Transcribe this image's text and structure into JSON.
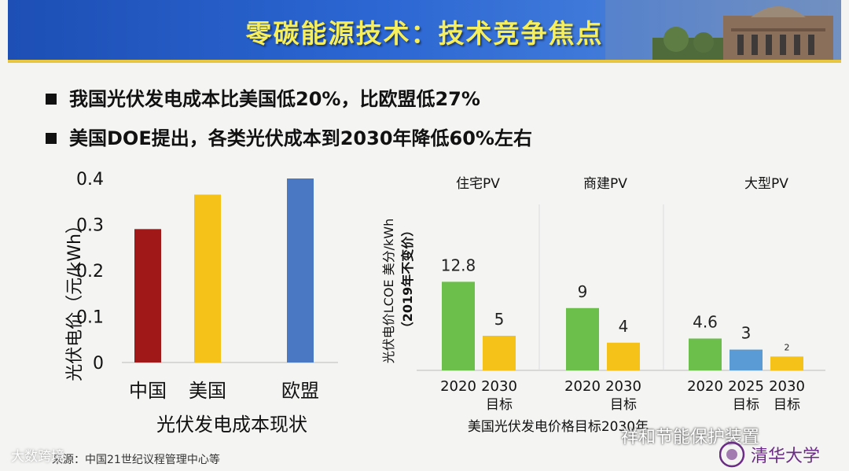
{
  "header": {
    "title": "零碳能源技术：技术竞争焦点"
  },
  "bullets": [
    "我国光伏发电成本比美国低20%，比欧盟低27%",
    "美国DOE提出，各类光伏成本到2030年降低60%左右"
  ],
  "chart_data": [
    {
      "type": "bar",
      "categories": [
        "中国",
        "美国",
        "欧盟"
      ],
      "values": [
        0.29,
        0.365,
        0.4
      ],
      "colors": [
        "#a01818",
        "#f5c21a",
        "#4a78c2"
      ],
      "ylabel": "光伏电价（元/kWh）",
      "xlabel": "光伏发电成本现状",
      "ylim": [
        0,
        0.4
      ],
      "yticks": [
        "0.4",
        "0.3",
        "0.2",
        "0.1",
        "0"
      ]
    },
    {
      "type": "bar",
      "ylabel": "光伏电价LCOE 美分/kWh",
      "ylabel2": "（2019年不变价）",
      "xlabel": "美国光伏发电价格目标2030年",
      "groups": [
        {
          "name": "住宅PV",
          "bars": [
            {
              "label": "2020",
              "label2": "",
              "value": 12.8,
              "value_label": "12.8",
              "color": "#6cbf4b"
            },
            {
              "label": "2030",
              "label2": "目标",
              "value": 5,
              "value_label": "5",
              "color": "#f5c21a"
            }
          ]
        },
        {
          "name": "商建PV",
          "bars": [
            {
              "label": "2020",
              "label2": "",
              "value": 9,
              "value_label": "9",
              "color": "#6cbf4b"
            },
            {
              "label": "2030",
              "label2": "目标",
              "value": 4,
              "value_label": "4",
              "color": "#f5c21a"
            }
          ]
        },
        {
          "name": "大型PV",
          "bars": [
            {
              "label": "2020",
              "label2": "",
              "value": 4.6,
              "value_label": "4.6",
              "color": "#6cbf4b"
            },
            {
              "label": "2025",
              "label2": "目标",
              "value": 3,
              "value_label": "3",
              "color": "#5a9bd5"
            },
            {
              "label": "2030",
              "label2": "目标",
              "value": 2,
              "value_label": "2",
              "color": "#f5c21a"
            }
          ]
        }
      ]
    }
  ],
  "footer": {
    "source": "来源：中国21世纪议程管理中心等",
    "watermark_left": "大数跨境",
    "watermark_right": "祥和节能保护装置",
    "logo_text": "清华大学"
  }
}
